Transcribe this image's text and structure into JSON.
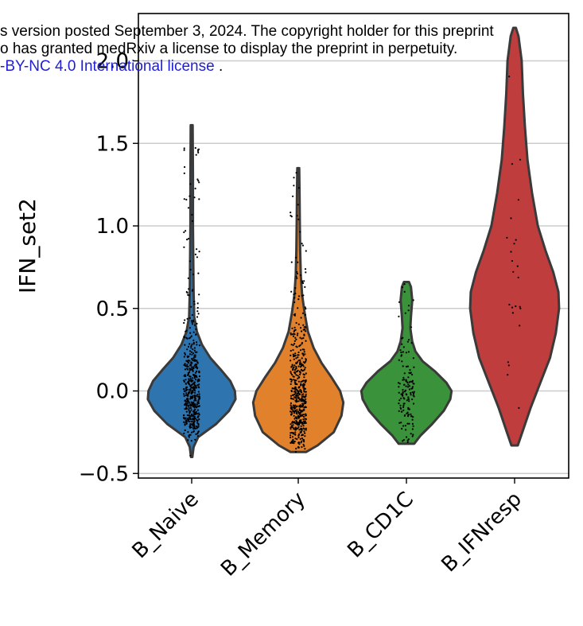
{
  "watermark": {
    "line1": "s version posted September 3, 2024. The copyright holder for this preprint",
    "line2": "o has granted medRxiv a license to display the preprint in perpetuity.",
    "line3_link": "-BY-NC 4.0 International license",
    "line3_tail": " ."
  },
  "chart_data": {
    "type": "violin",
    "ylabel": "IFN_set2",
    "xlabel": "",
    "title": "",
    "ylim": [
      -0.52,
      2.2
    ],
    "yticks": [
      -0.5,
      0.0,
      0.5,
      1.0,
      1.5,
      2.0
    ],
    "ytick_labels": [
      "−0.5",
      "0.0",
      "0.5",
      "1.0",
      "1.5",
      "2.0"
    ],
    "grid": "horizontal",
    "categories": [
      "B_Naive",
      "B_Memory",
      "B_CD1C",
      "B_IFNresp"
    ],
    "colors": [
      "#2e75b0",
      "#e1812b",
      "#3a923a",
      "#c03d3e"
    ],
    "jitter_points": true,
    "series": [
      {
        "category": "B_Naive",
        "min": -0.4,
        "max": 1.61,
        "outline": [
          [
            -0.4,
            0.01
          ],
          [
            -0.34,
            0.03
          ],
          [
            -0.28,
            0.1
          ],
          [
            -0.2,
            0.38
          ],
          [
            -0.12,
            0.58
          ],
          [
            -0.05,
            0.68
          ],
          [
            0.0,
            0.67
          ],
          [
            0.06,
            0.6
          ],
          [
            0.13,
            0.45
          ],
          [
            0.2,
            0.29
          ],
          [
            0.28,
            0.16
          ],
          [
            0.36,
            0.08
          ],
          [
            0.45,
            0.04
          ],
          [
            0.6,
            0.03
          ],
          [
            0.8,
            0.025
          ],
          [
            1.0,
            0.02
          ],
          [
            1.3,
            0.02
          ],
          [
            1.61,
            0.015
          ]
        ]
      },
      {
        "category": "B_Memory",
        "min": -0.37,
        "max": 1.35,
        "outline": [
          [
            -0.37,
            0.12
          ],
          [
            -0.33,
            0.3
          ],
          [
            -0.25,
            0.55
          ],
          [
            -0.15,
            0.67
          ],
          [
            -0.07,
            0.7
          ],
          [
            0.0,
            0.65
          ],
          [
            0.08,
            0.52
          ],
          [
            0.17,
            0.36
          ],
          [
            0.26,
            0.24
          ],
          [
            0.36,
            0.15
          ],
          [
            0.47,
            0.1
          ],
          [
            0.58,
            0.06
          ],
          [
            0.7,
            0.04
          ],
          [
            0.85,
            0.03
          ],
          [
            1.0,
            0.025
          ],
          [
            1.2,
            0.02
          ],
          [
            1.35,
            0.015
          ]
        ]
      },
      {
        "category": "B_CD1C",
        "min": -0.32,
        "max": 0.66,
        "outline": [
          [
            -0.32,
            0.12
          ],
          [
            -0.27,
            0.22
          ],
          [
            -0.2,
            0.4
          ],
          [
            -0.12,
            0.58
          ],
          [
            -0.05,
            0.68
          ],
          [
            0.0,
            0.7
          ],
          [
            0.05,
            0.62
          ],
          [
            0.12,
            0.44
          ],
          [
            0.18,
            0.25
          ],
          [
            0.24,
            0.14
          ],
          [
            0.3,
            0.09
          ],
          [
            0.38,
            0.06
          ],
          [
            0.45,
            0.07
          ],
          [
            0.55,
            0.09
          ],
          [
            0.63,
            0.07
          ],
          [
            0.66,
            0.04
          ]
        ]
      },
      {
        "category": "B_IFNresp",
        "min": -0.33,
        "max": 2.2,
        "outline": [
          [
            -0.33,
            0.05
          ],
          [
            -0.25,
            0.12
          ],
          [
            -0.1,
            0.25
          ],
          [
            0.05,
            0.4
          ],
          [
            0.2,
            0.55
          ],
          [
            0.35,
            0.64
          ],
          [
            0.5,
            0.69
          ],
          [
            0.6,
            0.68
          ],
          [
            0.72,
            0.6
          ],
          [
            0.85,
            0.48
          ],
          [
            1.0,
            0.36
          ],
          [
            1.2,
            0.27
          ],
          [
            1.4,
            0.2
          ],
          [
            1.6,
            0.16
          ],
          [
            1.8,
            0.13
          ],
          [
            2.0,
            0.11
          ],
          [
            2.15,
            0.06
          ],
          [
            2.2,
            0.02
          ]
        ]
      }
    ]
  }
}
